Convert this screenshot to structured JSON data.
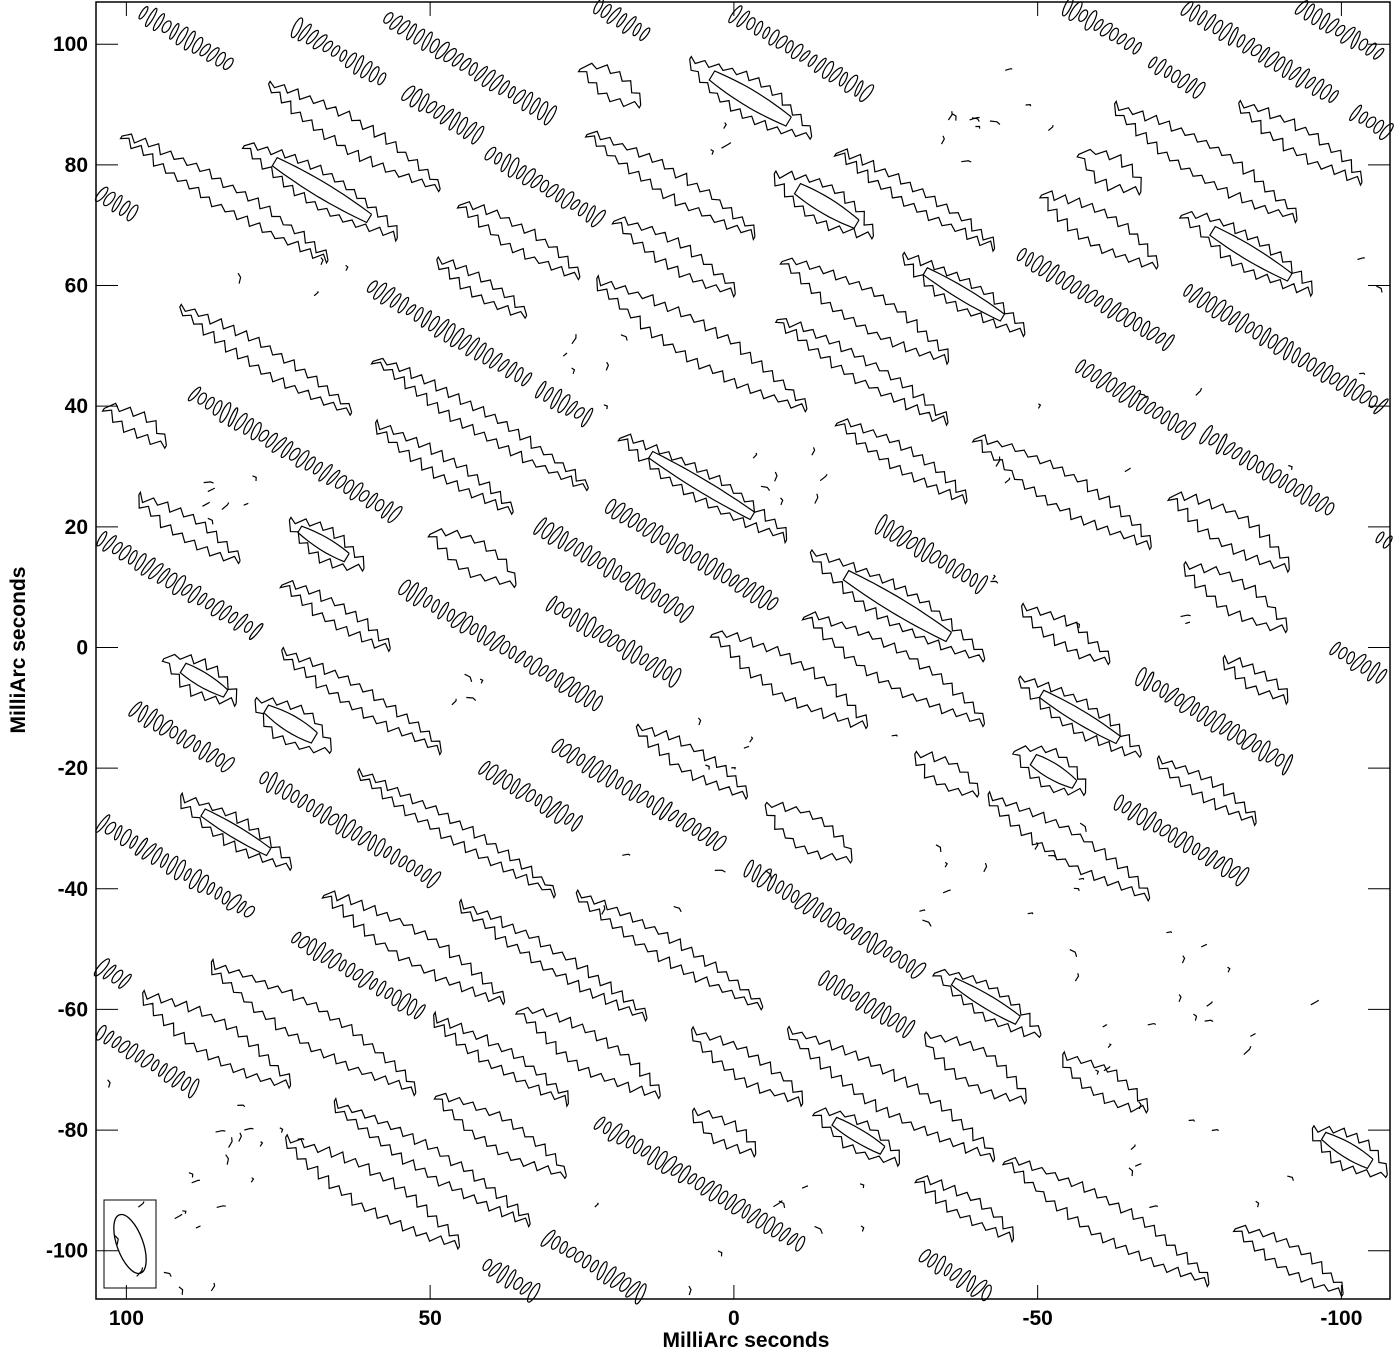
{
  "chart_data": {
    "type": "contour",
    "title": "",
    "xlabel": "MilliArc seconds",
    "ylabel": "MilliArc seconds",
    "xlim": [
      105,
      -108
    ],
    "ylim": [
      -108,
      107
    ],
    "x_reversed": true,
    "x_ticks": [
      100,
      50,
      0,
      -50,
      -100
    ],
    "y_ticks": [
      100,
      80,
      60,
      40,
      20,
      0,
      -20,
      -40,
      -60,
      -80,
      -100
    ],
    "x_tick_labels": [
      "100",
      "50",
      "0",
      "-50",
      "-100"
    ],
    "y_tick_labels": [
      "100",
      "80",
      "60",
      "40",
      "20",
      "0",
      "-20",
      "-40",
      "-60",
      "-80",
      "-100"
    ],
    "grid": false,
    "line_color": "#000000",
    "pattern": "diagonal striped contour ridges rising from lower-right to upper-left",
    "beam": {
      "x": 100,
      "y": -100,
      "major_axis": 10,
      "minor_axis": 6,
      "position_angle_deg": -20
    }
  }
}
